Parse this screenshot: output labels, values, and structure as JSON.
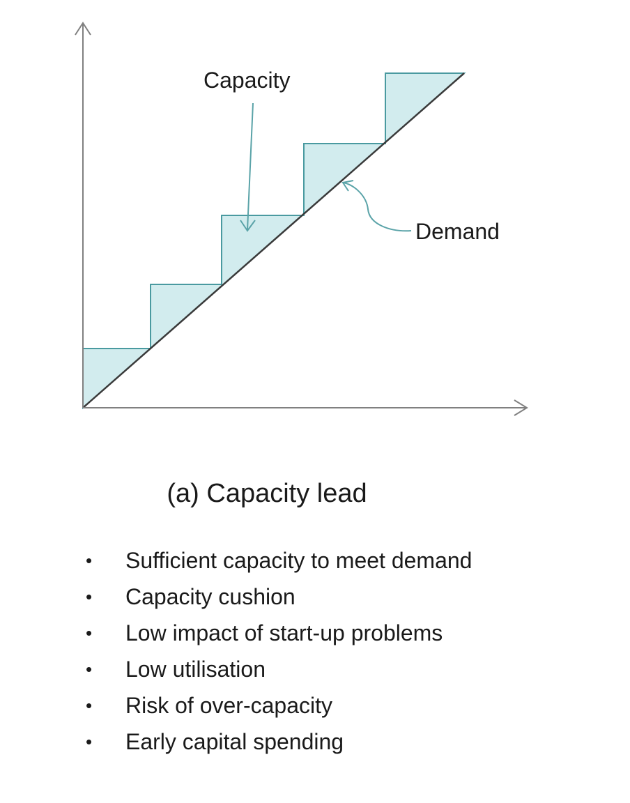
{
  "colors": {
    "fill": "#d2ecee",
    "capacity_stroke": "#4a9aa0",
    "demand_stroke": "#3a3a3a",
    "axis": "#808080",
    "arrow": "#5aa3a8"
  },
  "diagram": {
    "capacity_label": "Capacity",
    "demand_label": "Demand"
  },
  "caption": "(a) Capacity lead",
  "bullets": [
    "Sufficient capacity to meet demand",
    "Capacity cushion",
    "Low impact of start-up problems",
    "Low utilisation",
    "Risk of over-capacity",
    "Early capital spending"
  ]
}
